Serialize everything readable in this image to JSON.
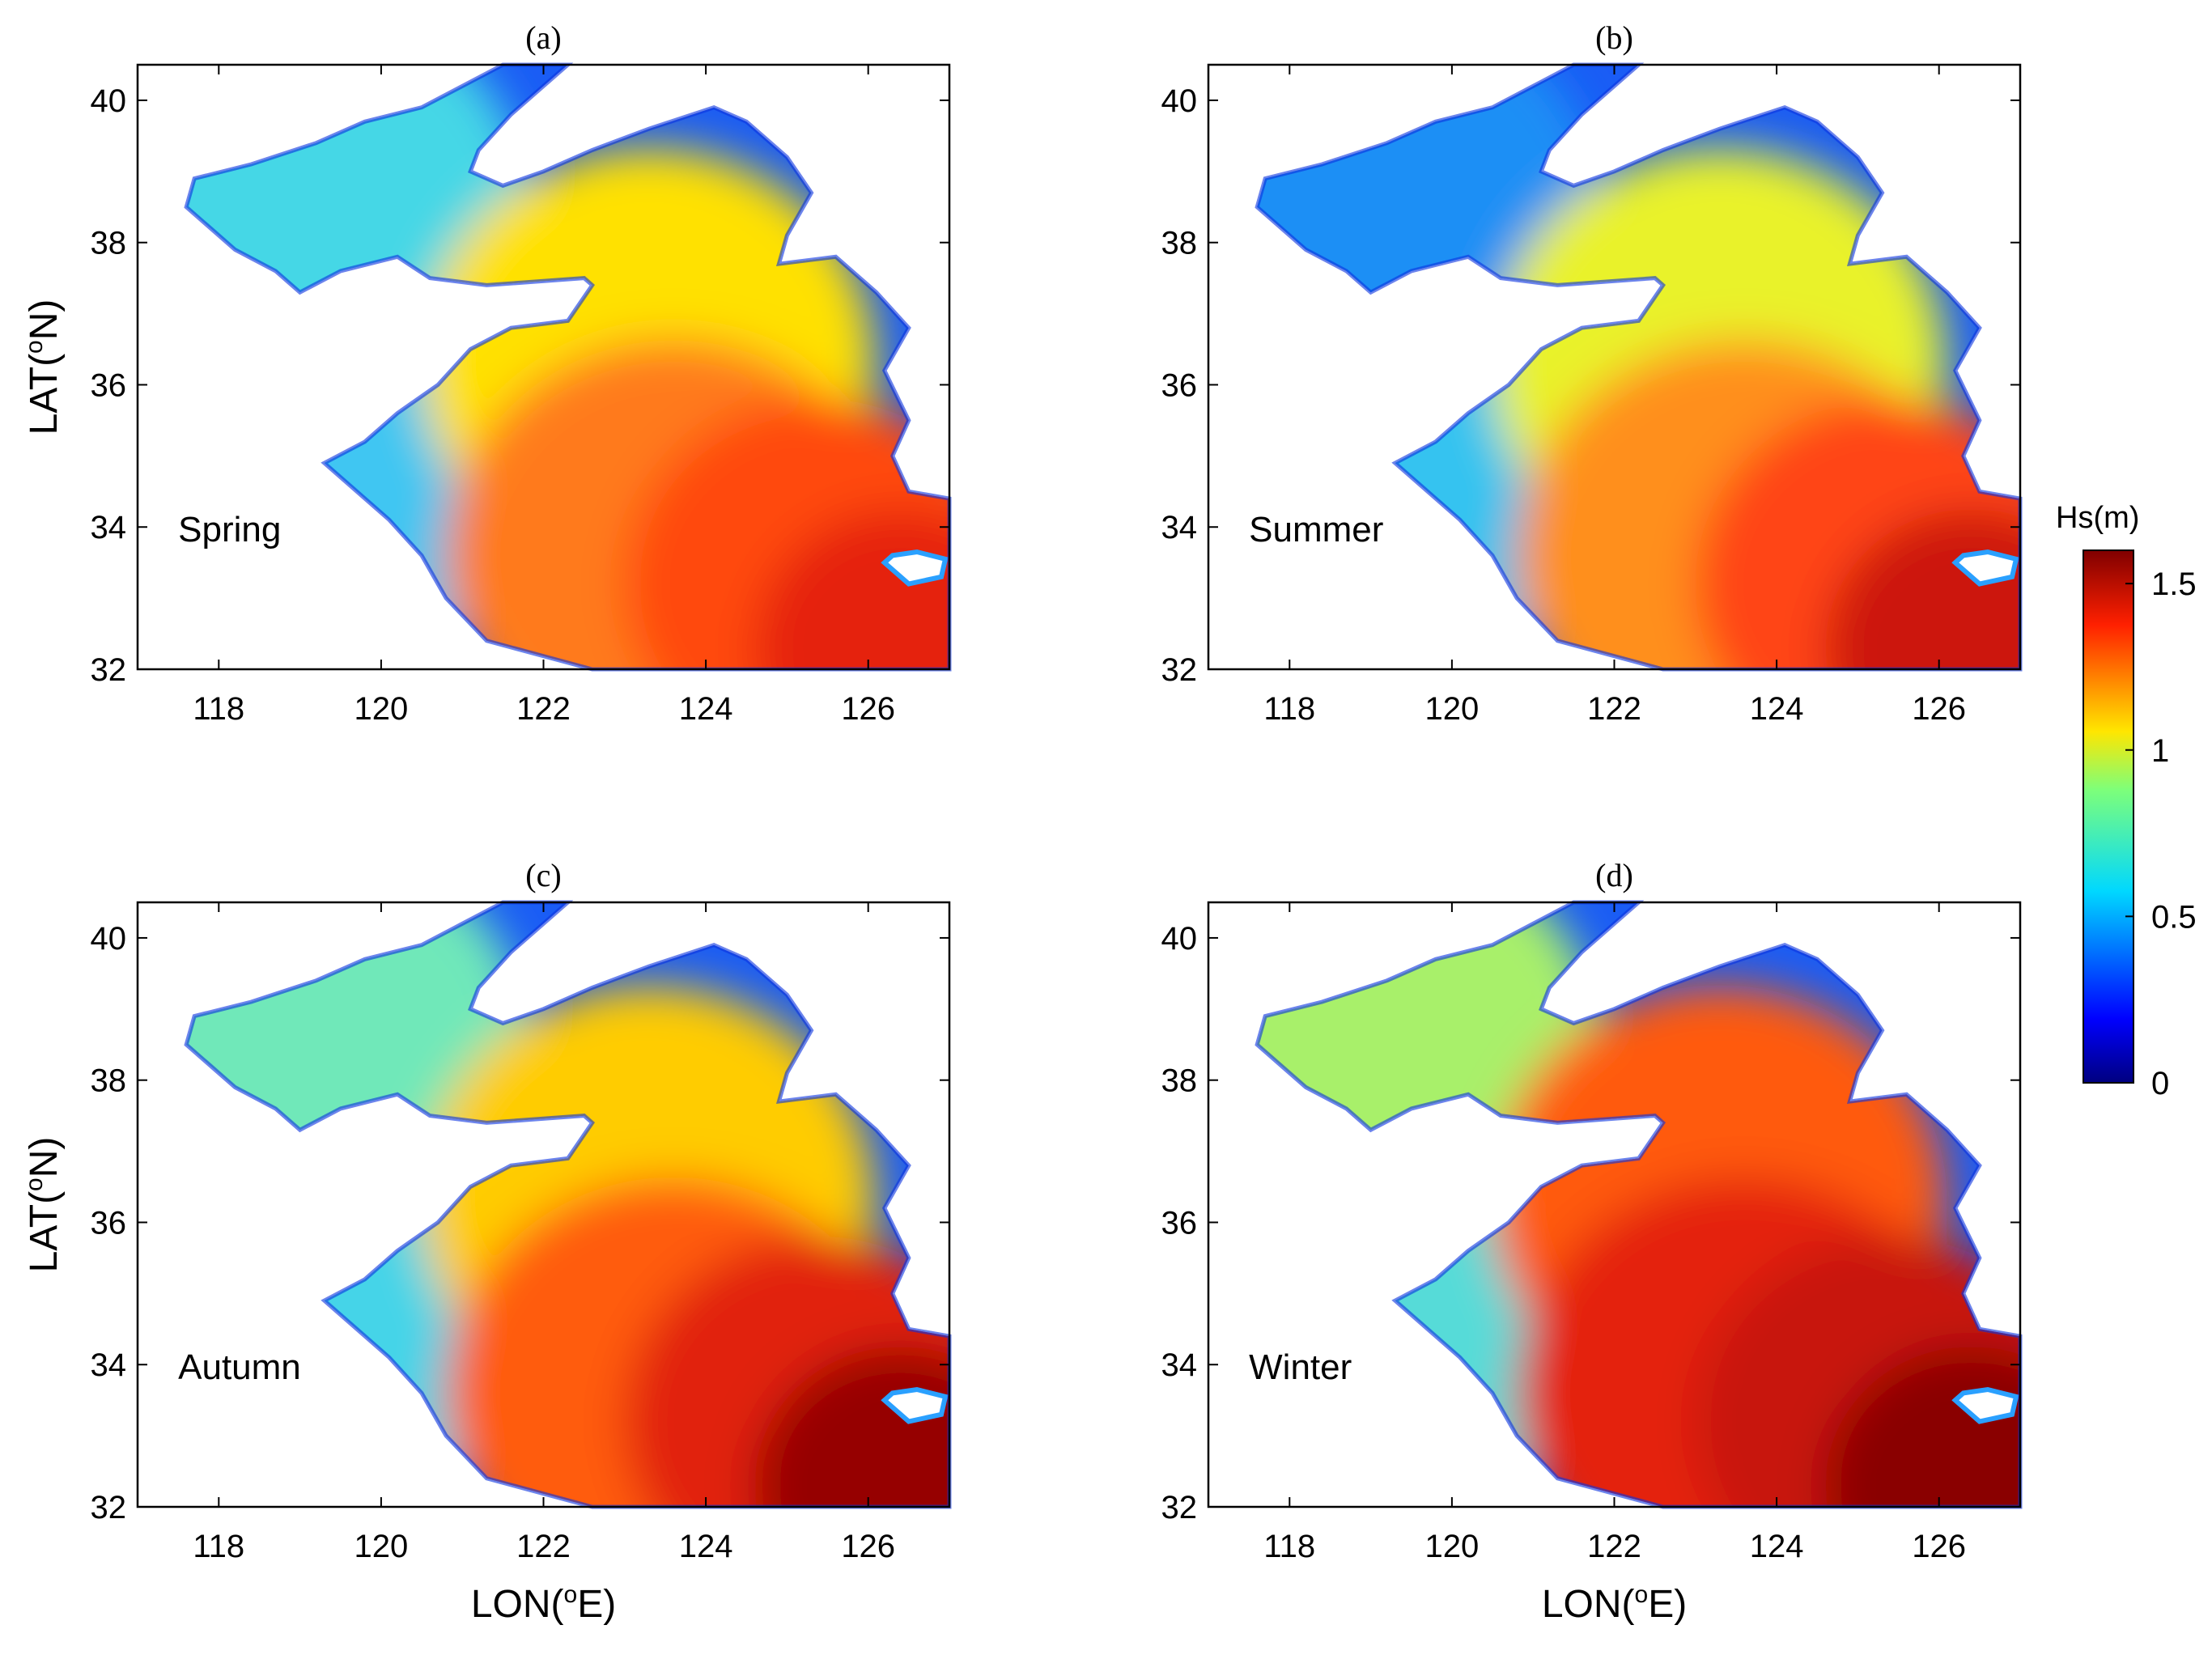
{
  "panels": [
    {
      "title": "(a)",
      "season": "Spring",
      "ylabel": "LAT(",
      "ylabel_sup": "o",
      "ylabel_end": "N)",
      "xlabel": "",
      "xlabel_sup": "",
      "xlabel_end": "",
      "colors": {
        "west": "#3fc6f2",
        "bohai": "#45d7e6",
        "center": "#ffe100",
        "south": "#ff7a1c",
        "east": "#ff4a10",
        "far": "#e5200e"
      }
    },
    {
      "title": "(b)",
      "season": "Summer",
      "ylabel": "",
      "ylabel_sup": "",
      "ylabel_end": "",
      "xlabel": "",
      "xlabel_sup": "",
      "xlabel_end": "",
      "colors": {
        "west": "#34c3f0",
        "bohai": "#1e8ff5",
        "center": "#e9f22a",
        "south": "#ff8f1a",
        "east": "#ff4412",
        "far": "#cc1208"
      }
    },
    {
      "title": "(c)",
      "season": "Autumn",
      "ylabel": "LAT(",
      "ylabel_sup": "o",
      "ylabel_end": "N)",
      "xlabel": "LON(",
      "xlabel_sup": "o",
      "xlabel_end": "E)",
      "colors": {
        "west": "#45d4e8",
        "bohai": "#70e8b9",
        "center": "#ffcc00",
        "south": "#ff5b10",
        "east": "#e1200a",
        "far": "#960000"
      }
    },
    {
      "title": "(d)",
      "season": "Winter",
      "ylabel": "",
      "ylabel_sup": "",
      "ylabel_end": "",
      "xlabel": "LON(",
      "xlabel_sup": "o",
      "xlabel_end": "E)",
      "colors": {
        "west": "#56dbd8",
        "bohai": "#a8f06a",
        "center": "#ff5a0e",
        "south": "#e4200a",
        "east": "#c81208",
        "far": "#8a0000"
      }
    }
  ],
  "x_ticks": [
    "118",
    "120",
    "122",
    "124",
    "126"
  ],
  "y_ticks": [
    "32",
    "34",
    "36",
    "38",
    "40"
  ],
  "x_range": [
    117,
    127
  ],
  "y_range": [
    32,
    40.5
  ],
  "colorbar": {
    "title": "Hs(m)",
    "ticks": [
      "0",
      "0.5",
      "1",
      "1.5"
    ],
    "range": [
      0,
      1.6
    ],
    "colormap": "jet"
  }
}
